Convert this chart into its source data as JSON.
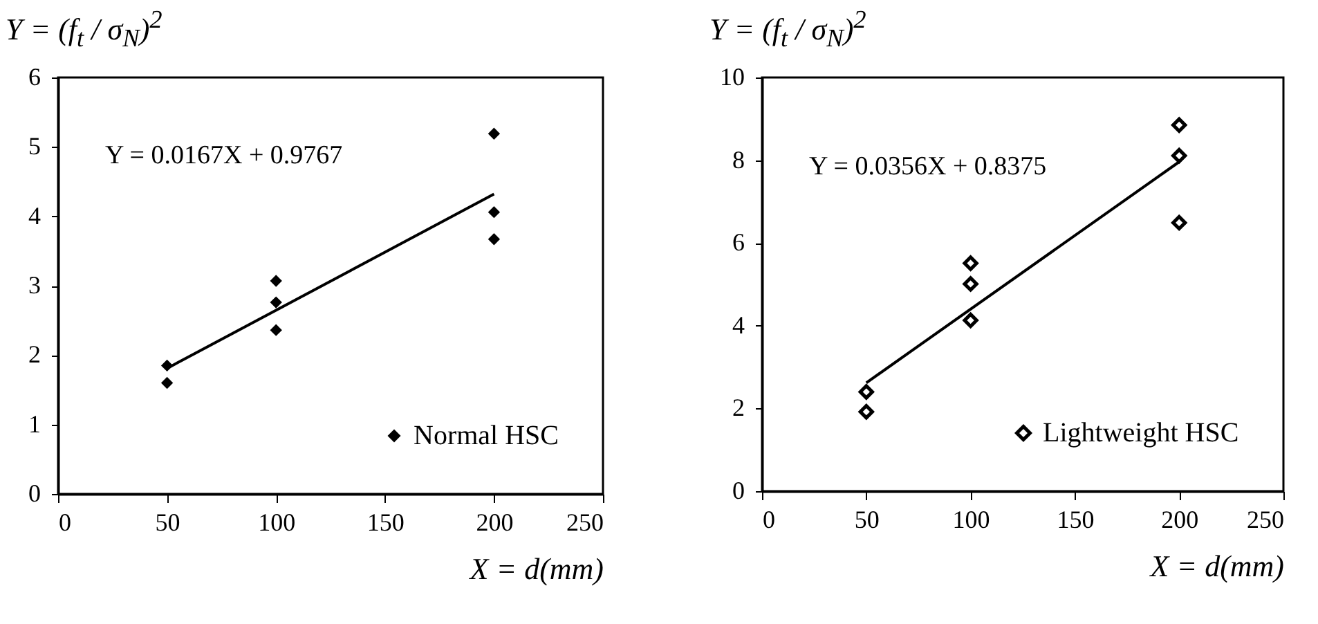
{
  "chart_data": [
    {
      "type": "scatter",
      "xlabel": "X = d(mm)",
      "ylabel": "Y = (f$_{t}$ / σ$_{N}$)$^{2}$",
      "annotations": [
        "Y = 0.0167X + 0.9767"
      ],
      "xlim": [
        0,
        250
      ],
      "xticks": [
        0,
        50,
        100,
        150,
        200,
        250
      ],
      "ylim": [
        0,
        6
      ],
      "yticks": [
        0,
        1,
        2,
        3,
        4,
        5,
        6
      ],
      "grid": false,
      "legend": "bottom right",
      "marker": "diamond",
      "series": [
        {
          "name": "Normal HSC",
          "color": "#000000",
          "x": [
            50,
            50,
            100,
            100,
            100,
            200,
            200,
            200
          ],
          "values": [
            1.85,
            1.6,
            3.07,
            2.76,
            2.36,
            5.19,
            4.06,
            3.67
          ]
        },
        {
          "type": "line",
          "color": "#000000",
          "marker": "none",
          "x": [
            50,
            200
          ],
          "values": [
            1.81,
            4.32
          ]
        }
      ]
    },
    {
      "type": "scatter",
      "xlabel": "X = d(mm)",
      "ylabel": "Y = (f$_{t}$ / σ$_{N}$)$^{2}$",
      "annotations": [
        "Y = 0.0356X + 0.8375"
      ],
      "xlim": [
        0,
        250
      ],
      "xticks": [
        0,
        50,
        100,
        150,
        200,
        250
      ],
      "ylim": [
        0,
        10
      ],
      "yticks": [
        0,
        2,
        4,
        6,
        8,
        10
      ],
      "grid": false,
      "legend": "bottom right",
      "marker": "diamond",
      "series": [
        {
          "name": "Lightweight HSC",
          "color": "#000000",
          "x": [
            50,
            50,
            100,
            100,
            100,
            200,
            200,
            200
          ],
          "values": [
            2.4,
            1.92,
            5.51,
            5.01,
            4.13,
            8.85,
            8.11,
            6.49
          ]
        },
        {
          "type": "line",
          "color": "#000000",
          "marker": "none",
          "x": [
            50,
            200
          ],
          "values": [
            2.62,
            7.96
          ]
        }
      ]
    }
  ]
}
